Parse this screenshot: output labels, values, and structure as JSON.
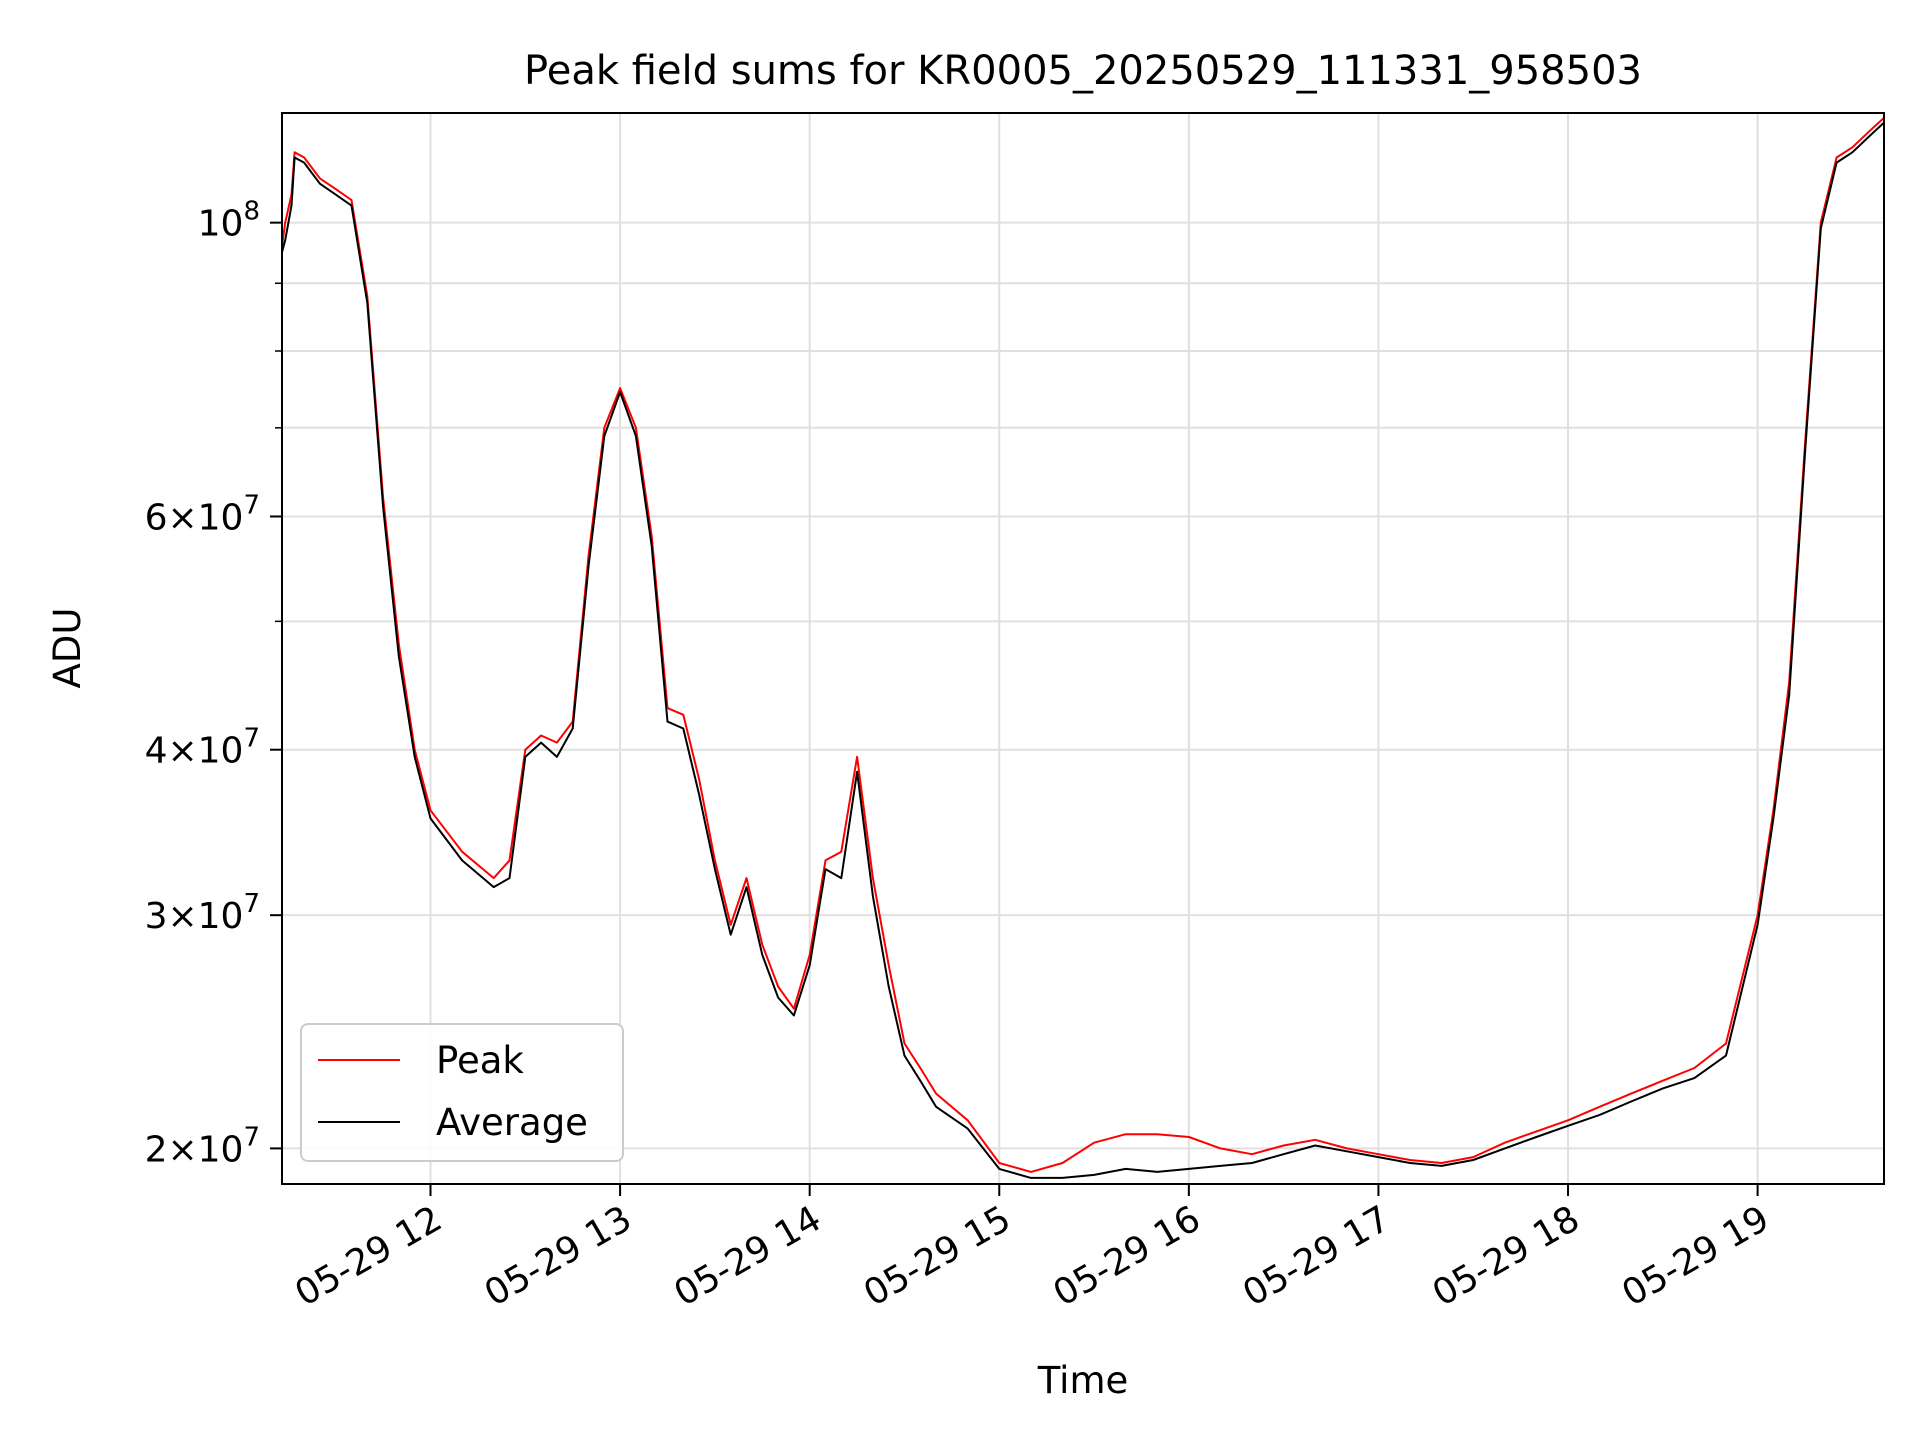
{
  "chart_data": {
    "type": "line",
    "title": "Peak field sums for KR0005_20250529_111331_958503",
    "xlabel": "Time",
    "ylabel": "ADU",
    "y_scale": "log",
    "xlim": [
      "2025-05-29 11:13",
      "2025-05-29 19:40"
    ],
    "ylim": [
      18800000,
      121000000
    ],
    "grid": true,
    "legend_position": "lower-left",
    "x_ticks": [
      {
        "value": "2025-05-29 12:00",
        "label": "05-29 12"
      },
      {
        "value": "2025-05-29 13:00",
        "label": "05-29 13"
      },
      {
        "value": "2025-05-29 14:00",
        "label": "05-29 14"
      },
      {
        "value": "2025-05-29 15:00",
        "label": "05-29 15"
      },
      {
        "value": "2025-05-29 16:00",
        "label": "05-29 16"
      },
      {
        "value": "2025-05-29 17:00",
        "label": "05-29 17"
      },
      {
        "value": "2025-05-29 18:00",
        "label": "05-29 18"
      },
      {
        "value": "2025-05-29 19:00",
        "label": "05-29 19"
      }
    ],
    "y_major_ticks": [
      {
        "value": 100000000,
        "base": "10",
        "exp": "8",
        "mantissa": ""
      },
      {
        "value": 60000000,
        "base": "10",
        "exp": "7",
        "mantissa": "6"
      },
      {
        "value": 40000000,
        "base": "10",
        "exp": "7",
        "mantissa": "4"
      },
      {
        "value": 30000000,
        "base": "10",
        "exp": "7",
        "mantissa": "3"
      },
      {
        "value": 20000000,
        "base": "10",
        "exp": "7",
        "mantissa": "2"
      }
    ],
    "y_minor_ticks": [
      50000000,
      70000000,
      80000000,
      90000000
    ],
    "series": [
      {
        "name": "Peak",
        "color": "#ff0000",
        "x": [
          "2025-05-29 11:13",
          "2025-05-29 11:14",
          "2025-05-29 11:16",
          "2025-05-29 11:17",
          "2025-05-29 11:20",
          "2025-05-29 11:25",
          "2025-05-29 11:30",
          "2025-05-29 11:35",
          "2025-05-29 11:40",
          "2025-05-29 11:45",
          "2025-05-29 11:50",
          "2025-05-29 11:55",
          "2025-05-29 12:00",
          "2025-05-29 12:10",
          "2025-05-29 12:20",
          "2025-05-29 12:25",
          "2025-05-29 12:30",
          "2025-05-29 12:35",
          "2025-05-29 12:40",
          "2025-05-29 12:45",
          "2025-05-29 12:50",
          "2025-05-29 12:55",
          "2025-05-29 13:00",
          "2025-05-29 13:05",
          "2025-05-29 13:10",
          "2025-05-29 13:15",
          "2025-05-29 13:20",
          "2025-05-29 13:25",
          "2025-05-29 13:30",
          "2025-05-29 13:35",
          "2025-05-29 13:40",
          "2025-05-29 13:45",
          "2025-05-29 13:50",
          "2025-05-29 13:55",
          "2025-05-29 14:00",
          "2025-05-29 14:05",
          "2025-05-29 14:10",
          "2025-05-29 14:15",
          "2025-05-29 14:20",
          "2025-05-29 14:25",
          "2025-05-29 14:30",
          "2025-05-29 14:35",
          "2025-05-29 14:40",
          "2025-05-29 14:50",
          "2025-05-29 15:00",
          "2025-05-29 15:10",
          "2025-05-29 15:20",
          "2025-05-29 15:30",
          "2025-05-29 15:40",
          "2025-05-29 15:50",
          "2025-05-29 16:00",
          "2025-05-29 16:10",
          "2025-05-29 16:20",
          "2025-05-29 16:30",
          "2025-05-29 16:40",
          "2025-05-29 16:50",
          "2025-05-29 17:00",
          "2025-05-29 17:10",
          "2025-05-29 17:20",
          "2025-05-29 17:30",
          "2025-05-29 17:40",
          "2025-05-29 17:50",
          "2025-05-29 18:00",
          "2025-05-29 18:10",
          "2025-05-29 18:20",
          "2025-05-29 18:30",
          "2025-05-29 18:40",
          "2025-05-29 18:50",
          "2025-05-29 19:00",
          "2025-05-29 19:05",
          "2025-05-29 19:10",
          "2025-05-29 19:15",
          "2025-05-29 19:20",
          "2025-05-29 19:25",
          "2025-05-29 19:30",
          "2025-05-29 19:35",
          "2025-05-29 19:40"
        ],
        "y": [
          96000000,
          100000000,
          105000000,
          113000000,
          112000000,
          108000000,
          106000000,
          104000000,
          88000000,
          62000000,
          48000000,
          40000000,
          36000000,
          33500000,
          32000000,
          33000000,
          40000000,
          41000000,
          40500000,
          42000000,
          56000000,
          70000000,
          75000000,
          70000000,
          58000000,
          43000000,
          42500000,
          38000000,
          33000000,
          29500000,
          32000000,
          28500000,
          26500000,
          25500000,
          28000000,
          33000000,
          33500000,
          39500000,
          32000000,
          27500000,
          24000000,
          23000000,
          22000000,
          21000000,
          19500000,
          19200000,
          19500000,
          20200000,
          20500000,
          20500000,
          20400000,
          20000000,
          19800000,
          20100000,
          20300000,
          20000000,
          19800000,
          19600000,
          19500000,
          19700000,
          20200000,
          20600000,
          21000000,
          21500000,
          22000000,
          22500000,
          23000000,
          24000000,
          30000000,
          36000000,
          45000000,
          68000000,
          100000000,
          112000000,
          114000000,
          117000000,
          120000000
        ]
      },
      {
        "name": "Average",
        "color": "#000000",
        "x": [
          "2025-05-29 11:13",
          "2025-05-29 11:14",
          "2025-05-29 11:16",
          "2025-05-29 11:17",
          "2025-05-29 11:20",
          "2025-05-29 11:25",
          "2025-05-29 11:30",
          "2025-05-29 11:35",
          "2025-05-29 11:40",
          "2025-05-29 11:45",
          "2025-05-29 11:50",
          "2025-05-29 11:55",
          "2025-05-29 12:00",
          "2025-05-29 12:10",
          "2025-05-29 12:20",
          "2025-05-29 12:25",
          "2025-05-29 12:30",
          "2025-05-29 12:35",
          "2025-05-29 12:40",
          "2025-05-29 12:45",
          "2025-05-29 12:50",
          "2025-05-29 12:55",
          "2025-05-29 13:00",
          "2025-05-29 13:05",
          "2025-05-29 13:10",
          "2025-05-29 13:15",
          "2025-05-29 13:20",
          "2025-05-29 13:25",
          "2025-05-29 13:30",
          "2025-05-29 13:35",
          "2025-05-29 13:40",
          "2025-05-29 13:45",
          "2025-05-29 13:50",
          "2025-05-29 13:55",
          "2025-05-29 14:00",
          "2025-05-29 14:05",
          "2025-05-29 14:10",
          "2025-05-29 14:15",
          "2025-05-29 14:20",
          "2025-05-29 14:25",
          "2025-05-29 14:30",
          "2025-05-29 14:35",
          "2025-05-29 14:40",
          "2025-05-29 14:50",
          "2025-05-29 15:00",
          "2025-05-29 15:10",
          "2025-05-29 15:20",
          "2025-05-29 15:30",
          "2025-05-29 15:40",
          "2025-05-29 15:50",
          "2025-05-29 16:00",
          "2025-05-29 16:10",
          "2025-05-29 16:20",
          "2025-05-29 16:30",
          "2025-05-29 16:40",
          "2025-05-29 16:50",
          "2025-05-29 17:00",
          "2025-05-29 17:10",
          "2025-05-29 17:20",
          "2025-05-29 17:30",
          "2025-05-29 17:40",
          "2025-05-29 17:50",
          "2025-05-29 18:00",
          "2025-05-29 18:10",
          "2025-05-29 18:20",
          "2025-05-29 18:30",
          "2025-05-29 18:40",
          "2025-05-29 18:50",
          "2025-05-29 19:00",
          "2025-05-29 19:05",
          "2025-05-29 19:10",
          "2025-05-29 19:15",
          "2025-05-29 19:20",
          "2025-05-29 19:25",
          "2025-05-29 19:30",
          "2025-05-29 19:35",
          "2025-05-29 19:40"
        ],
        "y": [
          95000000,
          97000000,
          103000000,
          112000000,
          111000000,
          107000000,
          105000000,
          103000000,
          87000000,
          61000000,
          47000000,
          39500000,
          35500000,
          33000000,
          31500000,
          32000000,
          39500000,
          40500000,
          39500000,
          41500000,
          55000000,
          69000000,
          74500000,
          69000000,
          57000000,
          42000000,
          41500000,
          37000000,
          32500000,
          29000000,
          31500000,
          28000000,
          26000000,
          25200000,
          27500000,
          32500000,
          32000000,
          38500000,
          31000000,
          26500000,
          23500000,
          22500000,
          21500000,
          20700000,
          19300000,
          19000000,
          19000000,
          19100000,
          19300000,
          19200000,
          19300000,
          19400000,
          19500000,
          19800000,
          20100000,
          19900000,
          19700000,
          19500000,
          19400000,
          19600000,
          20000000,
          20400000,
          20800000,
          21200000,
          21700000,
          22200000,
          22600000,
          23500000,
          29500000,
          35500000,
          44000000,
          67000000,
          99000000,
          111000000,
          113000000,
          116000000,
          119000000
        ]
      }
    ]
  }
}
